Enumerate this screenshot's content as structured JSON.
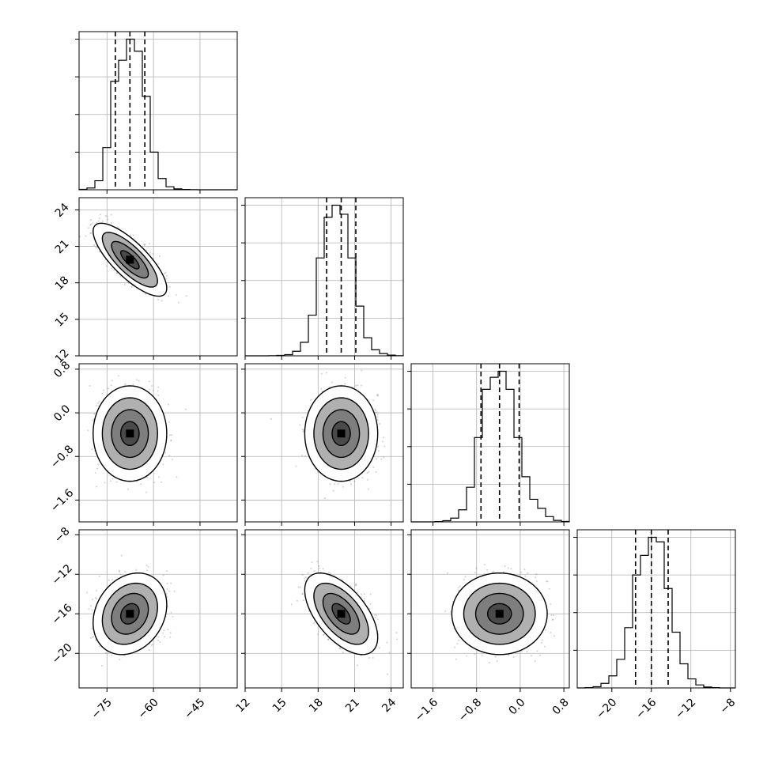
{
  "chart_data": {
    "type": "corner",
    "grid": true,
    "colors": {
      "hist": "#000000",
      "points": "#7a7a7a",
      "contour": "#000000",
      "grid": "#b0b0b0"
    },
    "params": [
      {
        "range": [
          -84,
          -33
        ],
        "ticks": [
          -75,
          -60,
          -45
        ],
        "tick_labels": [
          "−75",
          "−60",
          "−45"
        ],
        "quantiles": [
          -72.3,
          -67.6,
          -62.8
        ]
      },
      {
        "range": [
          12,
          25
        ],
        "ticks": [
          12,
          15,
          18,
          21,
          24
        ],
        "tick_labels": [
          "12",
          "15",
          "18",
          "21",
          "24"
        ],
        "quantiles": [
          18.7,
          19.9,
          21.1
        ]
      },
      {
        "range": [
          -2.0,
          0.9
        ],
        "ticks": [
          -1.6,
          -0.8,
          0.0,
          0.8
        ],
        "tick_labels": [
          "−1.6",
          "−0.8",
          "0.0",
          "0.8"
        ],
        "quantiles": [
          -0.72,
          -0.38,
          -0.02
        ]
      },
      {
        "range": [
          -23.5,
          -7.5
        ],
        "ticks": [
          -20,
          -16,
          -12,
          -8
        ],
        "tick_labels": [
          "−20",
          "−16",
          "−12",
          "−8"
        ],
        "quantiles": [
          -17.6,
          -16.0,
          -14.3
        ]
      }
    ],
    "histograms": [
      {
        "edges": [
          -84,
          -81.45,
          -78.9,
          -76.35,
          -73.8,
          -71.25,
          -68.7,
          -66.15,
          -63.6,
          -61.05,
          -58.5,
          -55.95,
          -53.4,
          -50.85,
          -48.3,
          -45.75,
          -43.2,
          -40.65,
          -38.1,
          -35.55,
          -33
        ],
        "counts": [
          3,
          12,
          60,
          280,
          720,
          860,
          1000,
          920,
          620,
          250,
          75,
          20,
          6,
          2,
          1,
          0,
          0,
          0,
          0,
          0
        ]
      },
      {
        "edges": [
          12,
          12.65,
          13.3,
          13.95,
          14.6,
          15.25,
          15.9,
          16.55,
          17.2,
          17.85,
          18.5,
          19.15,
          19.8,
          20.45,
          21.1,
          21.75,
          22.4,
          23.05,
          23.7,
          24.35,
          25
        ],
        "counts": [
          0,
          0,
          0,
          1,
          3,
          8,
          30,
          90,
          270,
          650,
          920,
          1000,
          940,
          650,
          330,
          120,
          40,
          15,
          5,
          1
        ]
      },
      {
        "edges": [
          -2.0,
          -1.855,
          -1.71,
          -1.565,
          -1.42,
          -1.275,
          -1.13,
          -0.985,
          -0.84,
          -0.695,
          -0.55,
          -0.405,
          -0.26,
          -0.115,
          0.03,
          0.175,
          0.32,
          0.465,
          0.61,
          0.755,
          0.9
        ],
        "counts": [
          0,
          0,
          0,
          2,
          8,
          25,
          80,
          230,
          560,
          880,
          960,
          1000,
          880,
          560,
          300,
          150,
          90,
          35,
          10,
          3
        ]
      },
      {
        "edges": [
          -23.5,
          -22.7,
          -21.9,
          -21.1,
          -20.3,
          -19.5,
          -18.7,
          -17.9,
          -17.1,
          -16.3,
          -15.5,
          -14.7,
          -13.9,
          -13.1,
          -12.3,
          -11.5,
          -10.7,
          -9.9,
          -9.1,
          -8.3,
          -7.5
        ],
        "counts": [
          0,
          2,
          8,
          30,
          80,
          190,
          400,
          750,
          880,
          1000,
          970,
          660,
          370,
          160,
          60,
          20,
          6,
          2,
          0,
          0
        ]
      }
    ],
    "joint": [
      {
        "x": 1,
        "y": 0,
        "mean": [
          19.9,
          -67.6
        ],
        "sd": [
          1.15,
          4.5
        ],
        "rho": -0.78
      },
      {
        "x": 2,
        "y": 0,
        "mean": [
          -0.38,
          -67.6
        ],
        "sd": [
          0.34,
          4.5
        ],
        "rho": 0.0
      },
      {
        "x": 2,
        "y": 1,
        "mean": [
          -0.38,
          19.9
        ],
        "sd": [
          0.34,
          1.15
        ],
        "rho": 0.0
      },
      {
        "x": 3,
        "y": 0,
        "mean": [
          -16.0,
          -67.6
        ],
        "sd": [
          1.6,
          4.5
        ],
        "rho": 0.22
      },
      {
        "x": 3,
        "y": 1,
        "mean": [
          -16.0,
          19.9
        ],
        "sd": [
          1.6,
          1.15
        ],
        "rho": -0.58
      },
      {
        "x": 3,
        "y": 2,
        "mean": [
          -16.0,
          -0.38
        ],
        "sd": [
          1.6,
          0.34
        ],
        "rho": 0.0
      }
    ],
    "contour_levels_sigma": [
      0.5,
      1.0,
      1.5,
      2.0
    ]
  }
}
